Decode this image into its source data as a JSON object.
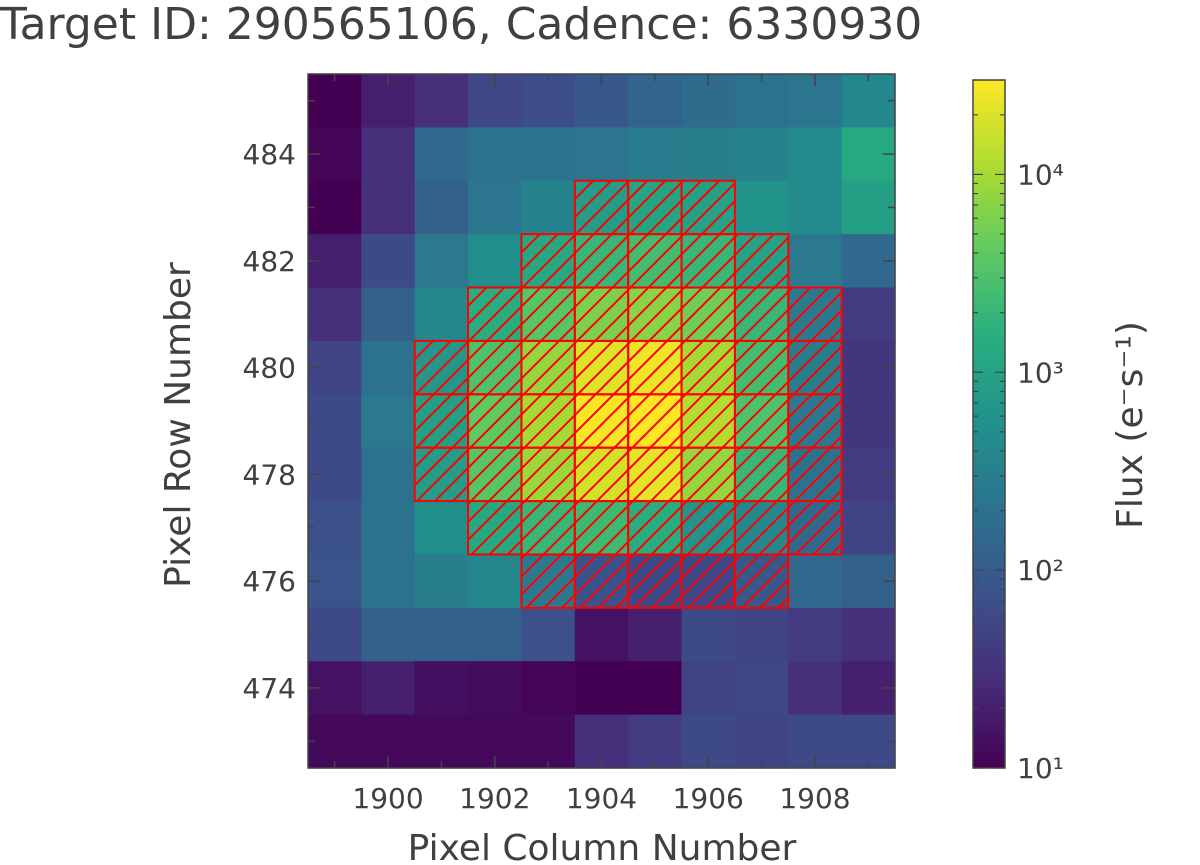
{
  "chart_data": {
    "type": "heatmap",
    "title": "Target ID: 290565106, Cadence: 6330930",
    "xlabel": "Pixel Column Number",
    "ylabel": "Pixel Row Number",
    "colorbar_label": "Flux (e⁻s⁻¹)",
    "colormap": "viridis",
    "colorbar_scale": "log",
    "colorbar_range": [
      10,
      30000
    ],
    "colorbar_ticks": [
      {
        "value": 10,
        "label": "10¹"
      },
      {
        "value": 100,
        "label": "10²"
      },
      {
        "value": 1000,
        "label": "10³"
      },
      {
        "value": 10000,
        "label": "10⁴"
      }
    ],
    "x_range": [
      1898.5,
      1909.5
    ],
    "y_range": [
      472.5,
      485.5
    ],
    "x_ticks": [
      1900,
      1902,
      1904,
      1906,
      1908
    ],
    "y_ticks": [
      474,
      476,
      478,
      480,
      482,
      484
    ],
    "columns": [
      1899,
      1900,
      1901,
      1902,
      1903,
      1904,
      1905,
      1906,
      1907,
      1908,
      1909
    ],
    "rows": [
      485,
      484,
      483,
      482,
      481,
      480,
      479,
      478,
      477,
      476,
      475,
      474,
      473
    ],
    "flux": [
      [
        10,
        20,
        30,
        55,
        65,
        90,
        130,
        160,
        200,
        220,
        400
      ],
      [
        11,
        30,
        150,
        200,
        200,
        230,
        280,
        300,
        350,
        450,
        1200
      ],
      [
        10,
        30,
        120,
        220,
        350,
        800,
        1100,
        1000,
        600,
        450,
        900
      ],
      [
        20,
        60,
        250,
        500,
        1200,
        2000,
        2500,
        2000,
        1000,
        250,
        150
      ],
      [
        30,
        120,
        400,
        1500,
        3500,
        6000,
        7000,
        5000,
        2000,
        250,
        40
      ],
      [
        50,
        200,
        700,
        3000,
        8000,
        20000,
        25000,
        10000,
        2500,
        300,
        35
      ],
      [
        60,
        250,
        900,
        4000,
        10000,
        28000,
        30000,
        12000,
        3000,
        250,
        35
      ],
      [
        60,
        200,
        800,
        3500,
        9000,
        18000,
        22000,
        8000,
        2000,
        200,
        40
      ],
      [
        70,
        200,
        500,
        1200,
        2000,
        2200,
        1500,
        600,
        400,
        150,
        50
      ],
      [
        80,
        200,
        300,
        400,
        250,
        80,
        60,
        55,
        90,
        150,
        120
      ],
      [
        60,
        120,
        120,
        120,
        70,
        15,
        20,
        60,
        50,
        40,
        30
      ],
      [
        15,
        20,
        14,
        13,
        11,
        10,
        8,
        50,
        55,
        30,
        20
      ],
      [
        12,
        12,
        12,
        12,
        12,
        30,
        40,
        60,
        50,
        60,
        60
      ]
    ],
    "aperture_mask": [
      [
        1904,
        483
      ],
      [
        1905,
        483
      ],
      [
        1906,
        483
      ],
      [
        1903,
        482
      ],
      [
        1904,
        482
      ],
      [
        1905,
        482
      ],
      [
        1906,
        482
      ],
      [
        1907,
        482
      ],
      [
        1902,
        481
      ],
      [
        1903,
        481
      ],
      [
        1904,
        481
      ],
      [
        1905,
        481
      ],
      [
        1906,
        481
      ],
      [
        1907,
        481
      ],
      [
        1908,
        481
      ],
      [
        1901,
        480
      ],
      [
        1902,
        480
      ],
      [
        1903,
        480
      ],
      [
        1904,
        480
      ],
      [
        1905,
        480
      ],
      [
        1906,
        480
      ],
      [
        1907,
        480
      ],
      [
        1908,
        480
      ],
      [
        1901,
        479
      ],
      [
        1902,
        479
      ],
      [
        1903,
        479
      ],
      [
        1904,
        479
      ],
      [
        1905,
        479
      ],
      [
        1906,
        479
      ],
      [
        1907,
        479
      ],
      [
        1908,
        479
      ],
      [
        1901,
        478
      ],
      [
        1902,
        478
      ],
      [
        1903,
        478
      ],
      [
        1904,
        478
      ],
      [
        1905,
        478
      ],
      [
        1906,
        478
      ],
      [
        1907,
        478
      ],
      [
        1908,
        478
      ],
      [
        1902,
        477
      ],
      [
        1903,
        477
      ],
      [
        1904,
        477
      ],
      [
        1905,
        477
      ],
      [
        1906,
        477
      ],
      [
        1907,
        477
      ],
      [
        1908,
        477
      ],
      [
        1903,
        476
      ],
      [
        1904,
        476
      ],
      [
        1905,
        476
      ],
      [
        1906,
        476
      ],
      [
        1907,
        476
      ]
    ],
    "aperture_color": "#ff0000"
  }
}
